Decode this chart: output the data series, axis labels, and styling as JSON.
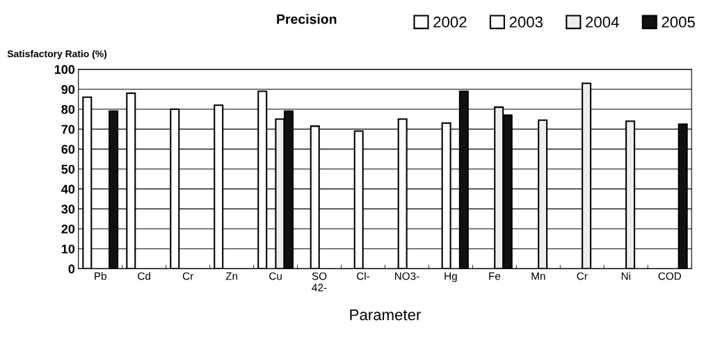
{
  "chart_data": {
    "type": "bar",
    "title": "Precision",
    "xlabel": "Parameter",
    "ylabel": "Satisfactory Ratio (%)",
    "categories": [
      "Pb",
      "Cd",
      "Cr",
      "Zn",
      "Cu",
      "SO\n42-",
      "Cl-",
      "NO3-",
      "Hg",
      "Fe",
      "Mn",
      "Cr",
      "Ni",
      "COD"
    ],
    "series": [
      {
        "name": "2002",
        "color": "#ffffff",
        "values": [
          86,
          88,
          80,
          82,
          89,
          null,
          null,
          null,
          null,
          null,
          null,
          null,
          null,
          null
        ]
      },
      {
        "name": "2003",
        "color": "#ffffff",
        "values": [
          null,
          null,
          null,
          null,
          null,
          71.5,
          69,
          75,
          73,
          null,
          null,
          null,
          null,
          null
        ]
      },
      {
        "name": "2004",
        "color": "#eeeeee",
        "values": [
          null,
          null,
          null,
          null,
          75,
          null,
          null,
          null,
          null,
          81,
          74.5,
          93,
          74,
          null
        ]
      },
      {
        "name": "2005",
        "color": "#111111",
        "values": [
          79,
          null,
          null,
          null,
          79,
          null,
          null,
          null,
          89,
          77,
          null,
          null,
          null,
          72.5
        ]
      }
    ],
    "ylim": [
      0,
      100
    ],
    "yticks": [
      0,
      10,
      20,
      30,
      40,
      50,
      60,
      70,
      80,
      90,
      100
    ],
    "grid": "y",
    "legend": "top right"
  }
}
